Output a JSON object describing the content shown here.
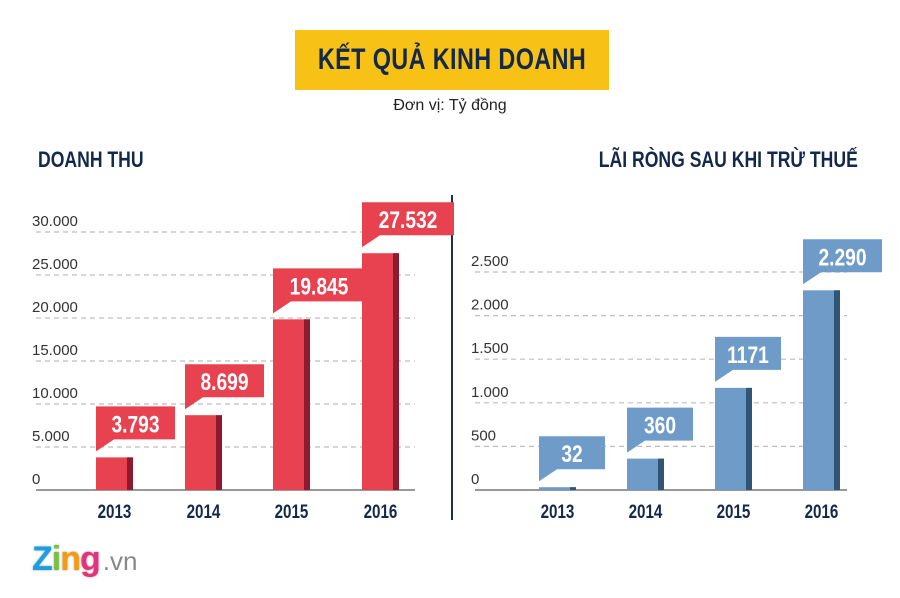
{
  "header": {
    "title": "KẾT QUẢ KINH DOANH",
    "subtitle": "Đơn vị: Tỷ đồng"
  },
  "colors": {
    "title_bg": "#f7c116",
    "title_text": "#13294b",
    "revenue_bar": "#e8414f",
    "revenue_shade": "#8f1a2e",
    "profit_bar": "#6f9bc8",
    "profit_shade": "#2f5676"
  },
  "chart_data": [
    {
      "type": "bar",
      "title": "DOANH THU",
      "categories": [
        "2013",
        "2014",
        "2015",
        "2016"
      ],
      "values": [
        3793,
        8699,
        19845,
        27532
      ],
      "data_labels": [
        "3.793",
        "8.699",
        "19.845",
        "27.532"
      ],
      "ylim": [
        0,
        30000
      ],
      "yticks": [
        0,
        5000,
        10000,
        15000,
        20000,
        25000,
        30000
      ],
      "ytick_labels": [
        "0",
        "5.000",
        "10.000",
        "15.000",
        "20.000",
        "25.000",
        "30.000"
      ],
      "grid": true
    },
    {
      "type": "bar",
      "title": "LÃI RÒNG SAU KHI TRỪ THUẾ",
      "categories": [
        "2013",
        "2014",
        "2015",
        "2016"
      ],
      "values": [
        32,
        360,
        1171,
        2290
      ],
      "data_labels": [
        "32",
        "360",
        "1171",
        "2.290"
      ],
      "ylim": [
        0,
        2500
      ],
      "yticks": [
        0,
        500,
        1000,
        1500,
        2000,
        2500
      ],
      "ytick_labels": [
        "0",
        "500",
        "1.000",
        "1.500",
        "2.000",
        "2.500"
      ],
      "grid": true
    }
  ],
  "footer": {
    "logo_main": "Zing",
    "logo_suffix": ".vn"
  }
}
